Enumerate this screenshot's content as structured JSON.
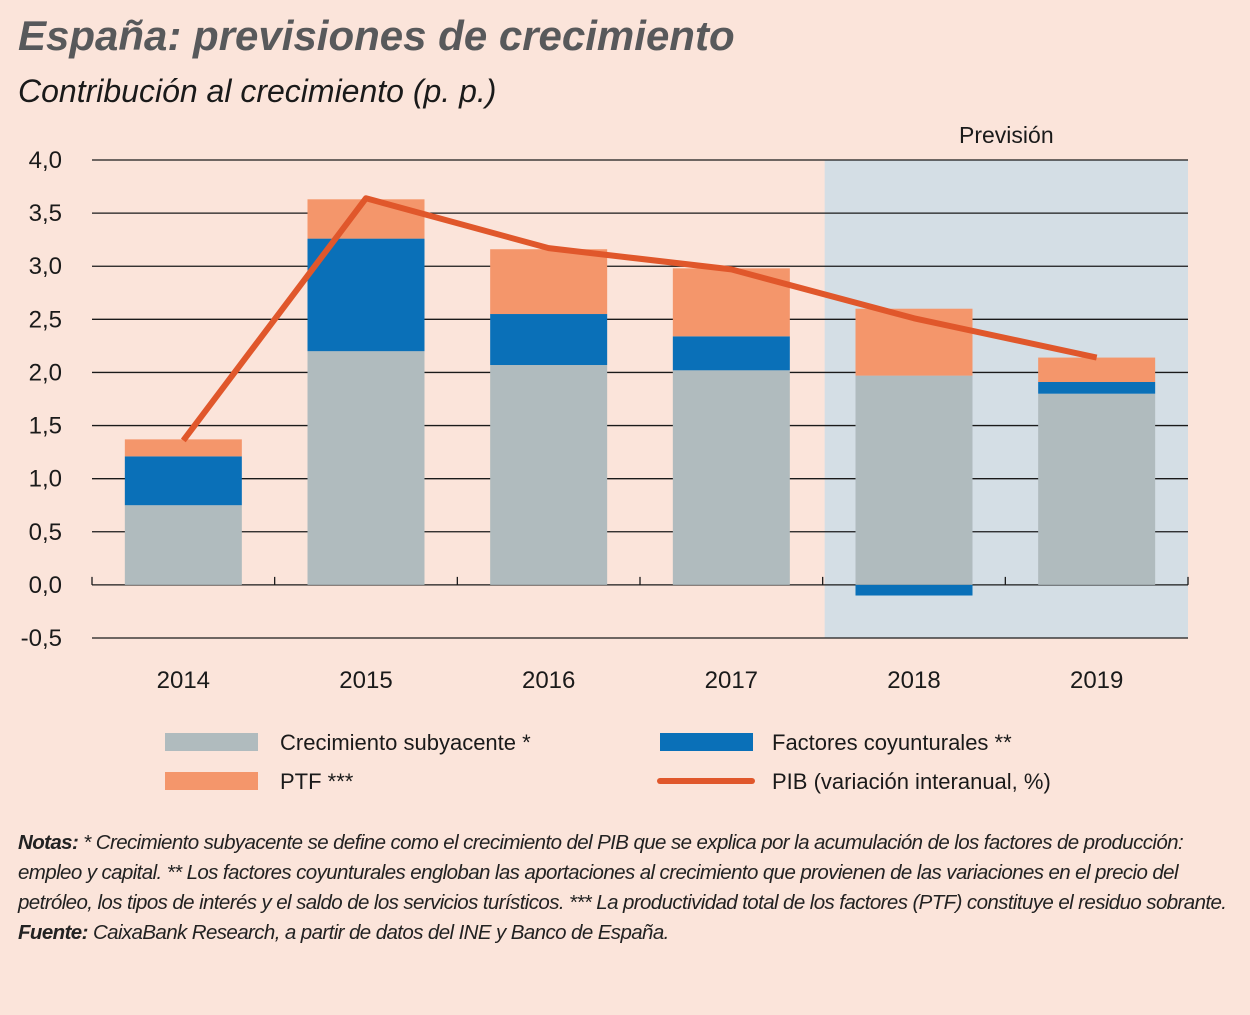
{
  "chart_data": {
    "type": "bar",
    "stacked": true,
    "title": "España: previsiones de crecimiento",
    "subtitle": "Contribución al crecimiento (p. p.)",
    "forecast": {
      "label": "Previsión",
      "from": "2018"
    },
    "categories": [
      "2014",
      "2015",
      "2016",
      "2017",
      "2018",
      "2019"
    ],
    "series": [
      {
        "name": "Crecimiento subyacente *",
        "color": "#b0bbbe",
        "values": [
          0.75,
          2.2,
          2.07,
          2.02,
          1.97,
          1.8
        ]
      },
      {
        "name": "Factores coyunturales **",
        "color": "#0a70b8",
        "values": [
          0.46,
          1.06,
          0.48,
          0.32,
          -0.1,
          0.11
        ]
      },
      {
        "name": "PTF ***",
        "color": "#f4966b",
        "values": [
          0.16,
          0.37,
          0.61,
          0.64,
          0.63,
          0.23
        ]
      },
      {
        "name": "PIB (variación interanual, %)",
        "type": "line",
        "color": "#e0572b",
        "values": [
          1.36,
          3.64,
          3.17,
          2.97,
          2.51,
          2.14
        ]
      }
    ],
    "ylim": [
      -0.5,
      4.0
    ],
    "yticks": [
      {
        "value": -0.5,
        "label": "-0,5"
      },
      {
        "value": 0.0,
        "label": "0,0"
      },
      {
        "value": 0.5,
        "label": "0,5"
      },
      {
        "value": 1.0,
        "label": "1,0"
      },
      {
        "value": 1.5,
        "label": "1,5"
      },
      {
        "value": 2.0,
        "label": "2,0"
      },
      {
        "value": 2.5,
        "label": "2,5"
      },
      {
        "value": 3.0,
        "label": "3,0"
      },
      {
        "value": 3.5,
        "label": "3,5"
      },
      {
        "value": 4.0,
        "label": "4,0"
      }
    ],
    "grid": true
  },
  "notes": {
    "label": "Notas:",
    "text": "* Crecimiento subyacente se define como el crecimiento del PIB que se explica por la acumulación de los factores de producción: empleo y capital. ** Los factores coyunturales engloban las aportaciones al crecimiento que provienen de las variaciones en el precio del petróleo, los tipos de interés y el saldo de los servicios turísticos. *** La productividad total de los factores (PTF) constituye el residuo sobrante."
  },
  "source": {
    "label": "Fuente:",
    "text": "CaixaBank Research, a partir de datos del INE y Banco de España."
  }
}
